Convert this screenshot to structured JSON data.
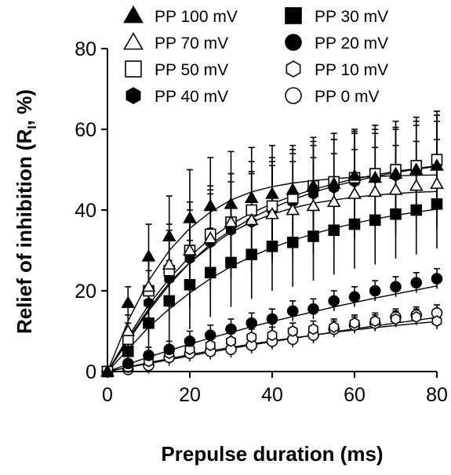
{
  "chart_data": {
    "type": "scatter",
    "xlabel": "Prepulse duration (ms)",
    "ylabel_main": "Relief of inhibition (R",
    "ylabel_sub": "I",
    "ylabel_tail": ", %)",
    "xlim": [
      0,
      80
    ],
    "ylim": [
      0,
      80
    ],
    "xticks": [
      0,
      20,
      40,
      60,
      80
    ],
    "yticks": [
      0,
      20,
      40,
      60,
      80
    ],
    "grid": false,
    "legend_position": "top",
    "x": [
      0,
      5,
      10,
      15,
      20,
      25,
      30,
      35,
      40,
      45,
      50,
      55,
      60,
      65,
      70,
      75,
      80
    ],
    "series": [
      {
        "name": "PP 100 mV",
        "marker": "triangle",
        "filled": true,
        "values": [
          0,
          17,
          28.5,
          33.5,
          38,
          41,
          41.5,
          43,
          44,
          45,
          46,
          46.5,
          48.5,
          48,
          49,
          50,
          51
        ],
        "error": [
          0,
          4,
          8,
          10,
          12,
          12,
          13,
          12.5,
          12,
          11,
          11,
          11,
          11,
          11,
          11,
          11,
          11
        ],
        "fit": [
          0,
          12.5,
          22.5,
          30,
          35.5,
          39.5,
          42.5,
          44.5,
          45.8,
          46.7,
          47.3,
          47.8,
          48.1,
          48.3,
          48.5,
          48.6,
          48.7
        ]
      },
      {
        "name": "PP 70 mV",
        "marker": "triangle",
        "filled": false,
        "values": [
          0,
          10,
          21,
          26.5,
          30,
          33,
          37,
          37.5,
          39,
          40,
          41,
          42,
          44,
          44.5,
          45,
          46,
          46.5
        ],
        "error": [
          0,
          4,
          8,
          10,
          12,
          12,
          12,
          12,
          12,
          12,
          12,
          12,
          11,
          11,
          11,
          11,
          11
        ],
        "fit": [
          0,
          8,
          15.5,
          22,
          27,
          31,
          34.5,
          37,
          39,
          40.5,
          41.7,
          42.5,
          43.2,
          43.7,
          44.1,
          44.4,
          44.6
        ]
      },
      {
        "name": "PP 50 mV",
        "marker": "square",
        "filled": false,
        "values": [
          0,
          8,
          20,
          25,
          30,
          34,
          37,
          40,
          41,
          43,
          46,
          47,
          48,
          49,
          50,
          51,
          52.5
        ],
        "error": [
          0,
          4,
          8,
          10,
          12,
          12,
          12,
          12,
          12,
          12,
          12,
          12,
          12,
          12,
          12,
          12,
          12
        ],
        "fit": [
          0,
          8.5,
          16.5,
          23,
          28.5,
          33,
          36.5,
          39.3,
          41.6,
          43.5,
          45.1,
          46.5,
          47.7,
          48.7,
          49.6,
          50.3,
          51
        ]
      },
      {
        "name": "PP 40 mV",
        "marker": "hexagon",
        "filled": true,
        "values": [
          0,
          8,
          17,
          23,
          28,
          32,
          35,
          37,
          40,
          42,
          44,
          45.5,
          47,
          48,
          48.5,
          50,
          51.5
        ],
        "error": [
          0,
          4,
          8,
          10,
          12,
          12,
          12,
          12,
          12,
          12,
          12,
          12,
          12,
          12,
          12,
          12,
          12
        ],
        "fit": [
          0,
          7.5,
          15,
          21.5,
          27,
          31.5,
          35,
          38,
          40.5,
          42.6,
          44.4,
          45.9,
          47.2,
          48.3,
          49.3,
          50.1,
          50.8
        ]
      },
      {
        "name": "PP 30 mV",
        "marker": "square",
        "filled": true,
        "values": [
          0,
          5,
          12,
          17.5,
          21.5,
          24.5,
          27,
          29,
          31,
          32,
          33.5,
          35,
          36.5,
          37.5,
          39,
          40,
          41.5
        ],
        "error": [
          0,
          4,
          8,
          10,
          11,
          11,
          11,
          11,
          11,
          11,
          11,
          11,
          11,
          11,
          11,
          11,
          11
        ],
        "fit": [
          0,
          5.5,
          11,
          15.5,
          19.5,
          23,
          26,
          28.5,
          30.7,
          32.5,
          34.1,
          35.5,
          36.7,
          37.8,
          38.7,
          39.5,
          40.2
        ]
      },
      {
        "name": "PP 20 mV",
        "marker": "circle",
        "filled": true,
        "values": [
          0,
          2,
          4,
          5.5,
          7.5,
          9,
          10.5,
          12,
          13,
          15,
          15.5,
          17.5,
          18.5,
          20,
          21,
          22,
          23
        ],
        "error": [
          0,
          1,
          2,
          2,
          2.5,
          2.5,
          2.5,
          2.5,
          2.5,
          2.5,
          2.5,
          2.5,
          2.5,
          2.5,
          2.5,
          2.5,
          2.5
        ],
        "fit": [
          0,
          1.8,
          3.6,
          5.2,
          6.8,
          8.3,
          9.7,
          11.1,
          12.4,
          13.6,
          14.8,
          16,
          17.1,
          18.2,
          19.2,
          20.2,
          21.2
        ]
      },
      {
        "name": "PP 10 mV",
        "marker": "hexagon",
        "filled": false,
        "values": [
          0,
          1,
          2.5,
          4.5,
          5.5,
          6.5,
          7.5,
          8.5,
          9,
          10,
          10.5,
          11,
          12,
          12.5,
          13,
          13.5,
          12.5
        ],
        "error": [
          0,
          1,
          2,
          2,
          2,
          2,
          2,
          2,
          2,
          2,
          2,
          2,
          2,
          2,
          2,
          2,
          2
        ],
        "fit": [
          0,
          1.1,
          2.2,
          3.2,
          4.2,
          5.1,
          6,
          6.8,
          7.6,
          8.3,
          9,
          9.7,
          10.3,
          10.9,
          11.4,
          11.9,
          12.4
        ]
      },
      {
        "name": "PP 0 mV",
        "marker": "circle",
        "filled": false,
        "values": [
          0,
          0.5,
          1.5,
          3.5,
          4.5,
          5,
          5.5,
          6.5,
          7.5,
          8,
          9,
          10.5,
          11.5,
          12,
          13.5,
          14,
          14.5
        ],
        "error": [
          0,
          1,
          2,
          2,
          2,
          2,
          2,
          2,
          2,
          2,
          2,
          2,
          2,
          2,
          2,
          2,
          2
        ],
        "fit": [
          0,
          1,
          2,
          2.9,
          3.9,
          4.8,
          5.7,
          6.6,
          7.4,
          8.2,
          9,
          9.8,
          10.6,
          11.3,
          12,
          12.7,
          13.4
        ]
      }
    ]
  }
}
